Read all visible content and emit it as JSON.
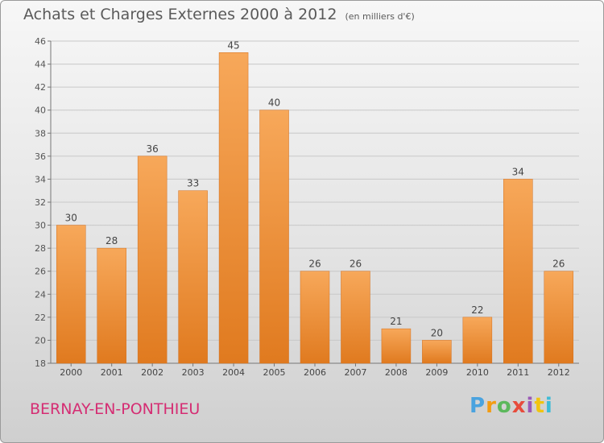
{
  "title": "Achats et Charges Externes 2000 à 2012",
  "subtitle": "(en milliers d'€)",
  "commune": "BERNAY-EN-PONTHIEU",
  "logo": {
    "letters": [
      "P",
      "r",
      "o",
      "x",
      "i",
      "t",
      "i"
    ],
    "colors": [
      "#4aa3df",
      "#f39c12",
      "#5cb85c",
      "#e74c3c",
      "#9b59b6",
      "#f1c40f",
      "#3dbbd6"
    ]
  },
  "colors": {
    "bar_light": "#f7a85a",
    "bar_dark": "#e07a1f",
    "grid": "#c8c8c8",
    "commune": "#d52d73"
  },
  "chart_data": {
    "type": "bar",
    "title": "Achats et Charges Externes 2000 à 2012",
    "subtitle": "(en milliers d'€)",
    "categories": [
      "2000",
      "2001",
      "2002",
      "2003",
      "2004",
      "2005",
      "2006",
      "2007",
      "2008",
      "2009",
      "2010",
      "2011",
      "2012"
    ],
    "values": [
      30,
      28,
      36,
      33,
      45,
      40,
      26,
      26,
      21,
      20,
      22,
      34,
      26
    ],
    "data_labels": [
      "30",
      "28",
      "36",
      "33",
      "45",
      "40",
      "26",
      "26",
      "21",
      "20",
      "22",
      "34",
      "26"
    ],
    "yticks": [
      "18",
      "20",
      "22",
      "24",
      "26",
      "28",
      "30",
      "32",
      "34",
      "36",
      "38",
      "40",
      "42",
      "44",
      "46"
    ],
    "ylim": [
      18,
      46
    ],
    "grid": true,
    "xlabel": "",
    "ylabel": ""
  }
}
